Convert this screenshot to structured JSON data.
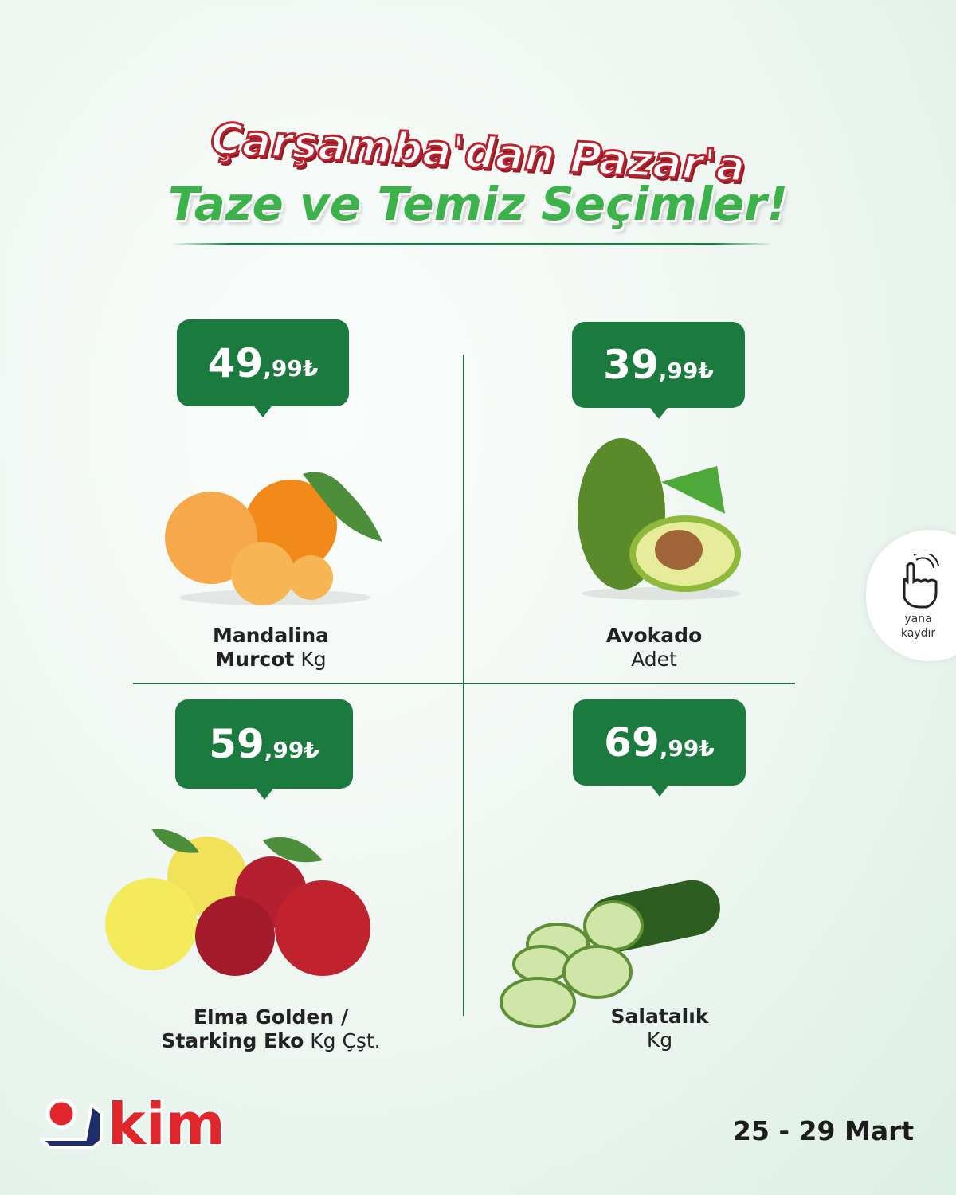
{
  "header": {
    "line1": "Çarşamba'dan Pazar'a",
    "line2": "Taze ve Temiz Seçimler!"
  },
  "products": [
    {
      "price_main": "49",
      "price_cents": ",99₺",
      "name_bold": "Mandalina",
      "name_bold2": "Murcot",
      "unit": "Kg"
    },
    {
      "price_main": "39",
      "price_cents": ",99₺",
      "name_bold": "Avokado",
      "name_bold2": "",
      "unit": "Adet"
    },
    {
      "price_main": "59",
      "price_cents": ",99₺",
      "name_bold": "Elma Golden /",
      "name_bold2": "Starking Eko",
      "unit": "Kg Çşt."
    },
    {
      "price_main": "69",
      "price_cents": ",99₺",
      "name_bold": "Salatalık",
      "name_bold2": "",
      "unit": "Kg"
    }
  ],
  "swipe": {
    "line1": "yana",
    "line2": "kaydır"
  },
  "brand": {
    "logo_text": "kim",
    "colors": {
      "red": "#e0262b",
      "navy": "#1e2d6b"
    }
  },
  "date": "25 - 29 Mart",
  "colors": {
    "price_bg": "#1b7a3e",
    "title_green": "#3cb34a",
    "title_red": "#b8232f"
  }
}
